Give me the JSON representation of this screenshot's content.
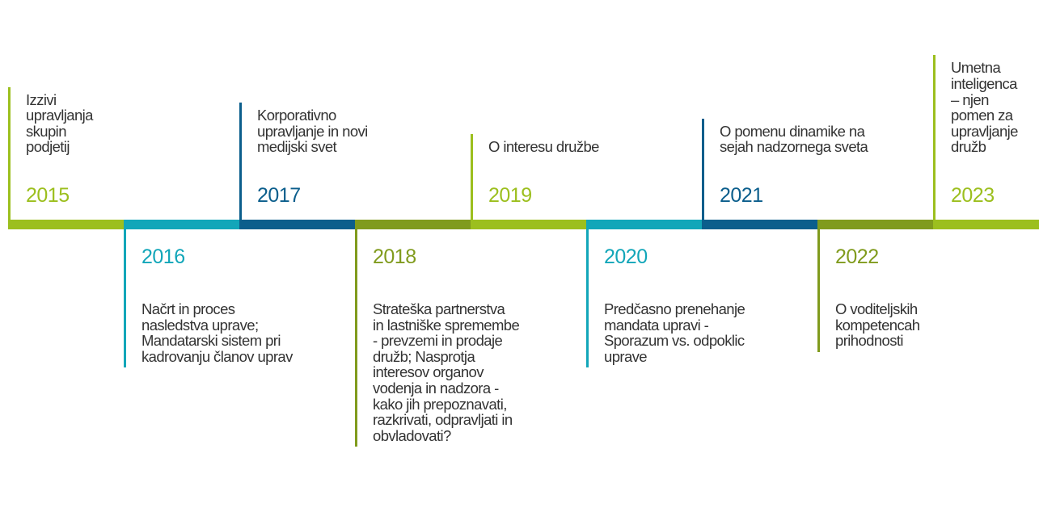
{
  "timeline": {
    "items": [
      {
        "year": "2015",
        "color": "#9cbf1e",
        "text": [
          "Izzivi",
          "upravljanja",
          "skupin",
          "podjetij"
        ]
      },
      {
        "year": "2016",
        "color": "#12a6b9",
        "text": [
          "Načrt in proces",
          "nasledstva uprave;",
          "Mandatarski sistem pri",
          "kadrovanju članov uprav"
        ]
      },
      {
        "year": "2017",
        "color": "#0b5e8c",
        "text": [
          "Korporativno",
          "upravljanje in novi",
          "medijski svet"
        ]
      },
      {
        "year": "2018",
        "color": "#809b1d",
        "text": [
          "Strateška partnerstva",
          "in lastniške spremembe",
          "- prevzemi in prodaje",
          "družb; Nasprotja",
          "interesov organov",
          "vodenja in nadzora -",
          "kako jih prepoznavati,",
          "razkrivati, odpravljati in",
          "obvladovati?"
        ]
      },
      {
        "year": "2019",
        "color": "#9cbf1e",
        "text": [
          "O interesu družbe"
        ]
      },
      {
        "year": "2020",
        "color": "#12a6b9",
        "text": [
          "Predčasno prenehanje",
          "mandata upravi -",
          "Sporazum vs. odpoklic",
          "uprave"
        ]
      },
      {
        "year": "2021",
        "color": "#0b5e8c",
        "text": [
          "O pomenu dinamike na",
          "sejah nadzornega sveta"
        ]
      },
      {
        "year": "2022",
        "color": "#809b1d",
        "text": [
          "O voditeljskih",
          "kompetencah",
          "prihodnosti"
        ]
      },
      {
        "year": "2023",
        "color": "#9cbf1e",
        "text": [
          "Umetna",
          "inteligenca",
          "– njen",
          "pomen za",
          "upravljanje",
          "družb"
        ]
      }
    ]
  }
}
